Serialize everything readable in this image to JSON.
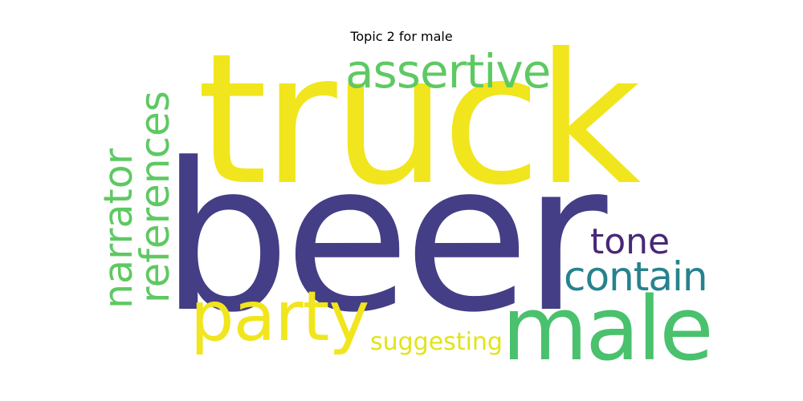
{
  "title": "Topic 2 for male",
  "words": [
    {
      "id": "truck",
      "text": "truck",
      "color": "#f1e51d"
    },
    {
      "id": "beer",
      "text": "beer",
      "color": "#433e85"
    },
    {
      "id": "male",
      "text": "male",
      "color": "#4ac16d"
    },
    {
      "id": "party",
      "text": "party",
      "color": "#f1e51d"
    },
    {
      "id": "assertive",
      "text": "assertive",
      "color": "#5ec962"
    },
    {
      "id": "references",
      "text": "references",
      "color": "#5ec962"
    },
    {
      "id": "narrator",
      "text": "narrator",
      "color": "#5ec962"
    },
    {
      "id": "contain",
      "text": "contain",
      "color": "#26828e"
    },
    {
      "id": "tone",
      "text": "tone",
      "color": "#482878"
    },
    {
      "id": "suggesting",
      "text": "suggesting",
      "color": "#e2e418"
    }
  ]
}
